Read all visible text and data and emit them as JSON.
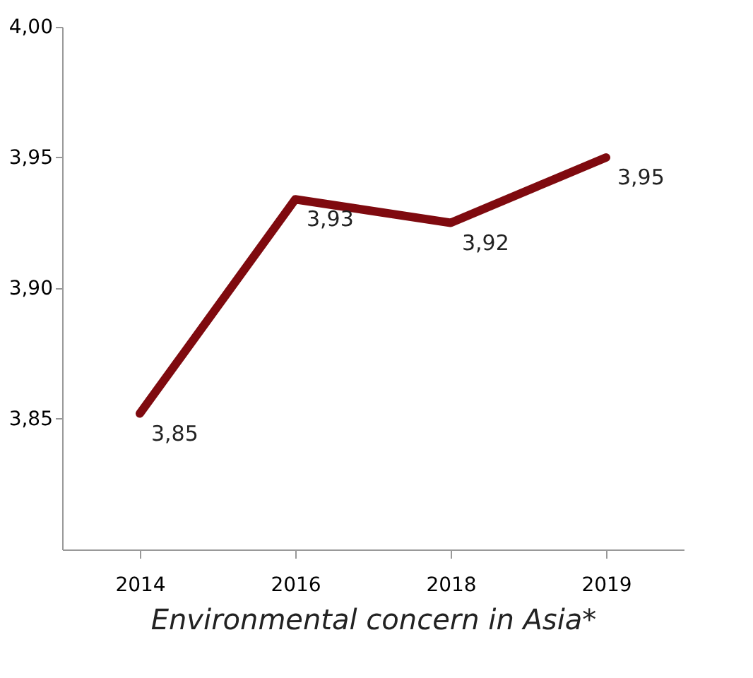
{
  "chart_data": {
    "type": "line",
    "xlabel": "Environmental concern in Asia*",
    "categories": [
      "2014",
      "2016",
      "2018",
      "2019"
    ],
    "series": [
      {
        "color": "#7f0a0f",
        "values": [
          3.852,
          3.934,
          3.925,
          3.95
        ],
        "value_labels": [
          "3,85",
          "3,93",
          "3,92",
          "3,95"
        ]
      }
    ],
    "ylim": [
      3.8,
      4.0
    ],
    "yticks": [
      {
        "value": 3.85,
        "label": "3,85"
      },
      {
        "value": 3.9,
        "label": "3,90"
      },
      {
        "value": 3.95,
        "label": "3,95"
      },
      {
        "value": 4.0,
        "label": "4,00"
      }
    ],
    "grid": false,
    "marker": "none",
    "line_style": "solid"
  }
}
